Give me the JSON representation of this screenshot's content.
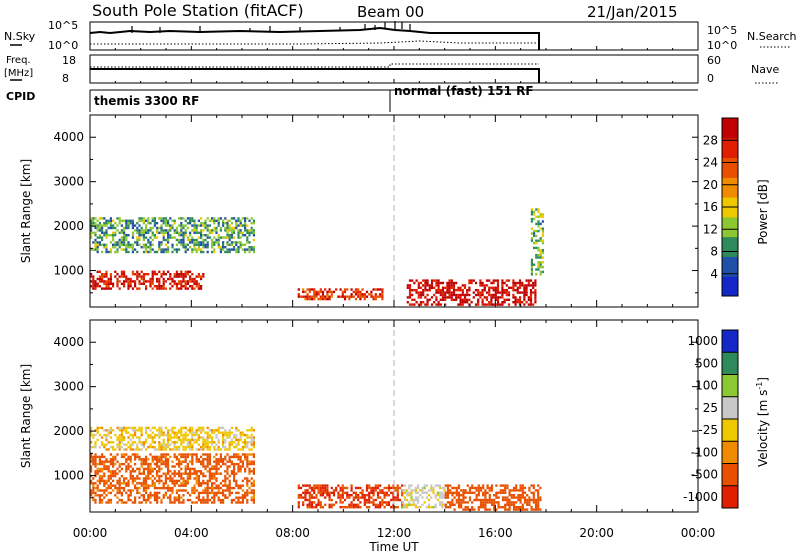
{
  "header": {
    "title": "South Pole Station (fitACF)",
    "beam": "Beam 00",
    "date": "21/Jan/2015"
  },
  "nsky_panel": {
    "left_label": "N.Sky",
    "left_ticks": [
      "10^5",
      "10^0"
    ],
    "right_ticks": [
      "10^5",
      "10^0"
    ],
    "right_label": "N.Search"
  },
  "freq_panel": {
    "left_label_1": "Freq.",
    "left_label_2": "[MHz]",
    "left_ticks": [
      "18",
      "8"
    ],
    "right_ticks": [
      "60",
      "0"
    ],
    "right_label": "Nave"
  },
  "cpid_panel": {
    "label": "CPID",
    "mode_1": "themis 3300 RF",
    "mode_2": "normal (fast) 151 RF"
  },
  "colors": {
    "power_scale": [
      "#1428c8",
      "#2050a8",
      "#2e8a5a",
      "#8cc832",
      "#f0c800",
      "#f08a00",
      "#e85000",
      "#e01e00",
      "#c00000"
    ],
    "velocity_scale": [
      "#1428c8",
      "#2e8a5a",
      "#8cc832",
      "#c8c8c8",
      "#f0c800",
      "#f08a00",
      "#e85000",
      "#e01e00"
    ]
  },
  "chart_data": [
    {
      "type": "heatmap",
      "parameter": "Power",
      "ylabel": "Slant Range [km]",
      "yticks": [
        1000,
        2000,
        3000,
        4000
      ],
      "ylim": [
        180,
        4500
      ],
      "xlim_hours": [
        0,
        24
      ],
      "data_end_hour": 17.9,
      "colorbar": {
        "label": "Power [dB]",
        "ticks": [
          "4",
          "8",
          "12",
          "16",
          "20",
          "24",
          "28"
        ],
        "range": [
          0,
          32
        ]
      },
      "features": [
        {
          "t_start": 0.0,
          "t_end": 4.5,
          "range_start": 600,
          "range_end": 1000,
          "value": 28
        },
        {
          "t_start": 0.0,
          "t_end": 6.5,
          "range_start": 1400,
          "range_end": 2200,
          "value": 10
        },
        {
          "t_start": 8.2,
          "t_end": 11.5,
          "range_start": 350,
          "range_end": 600,
          "value": 26
        },
        {
          "t_start": 12.5,
          "t_end": 17.6,
          "range_start": 250,
          "range_end": 800,
          "value": 30
        },
        {
          "t_start": 17.4,
          "t_end": 17.9,
          "range_start": 900,
          "range_end": 2400,
          "value": 12
        }
      ]
    },
    {
      "type": "heatmap",
      "parameter": "Velocity",
      "ylabel": "Slant Range [km]",
      "yticks": [
        1000,
        2000,
        3000,
        4000
      ],
      "ylim": [
        180,
        4500
      ],
      "xlim_hours": [
        0,
        24
      ],
      "data_end_hour": 17.9,
      "xlabel": "Time UT",
      "xticks": [
        "00:00",
        "04:00",
        "08:00",
        "12:00",
        "16:00",
        "20:00",
        "00:00"
      ],
      "colorbar": {
        "label": "Velocity [m s",
        "label_sup": "-1",
        "label_end": "]",
        "ticks": [
          "1000",
          "500",
          "100",
          "25",
          "-25",
          "-100",
          "-500",
          "-1000"
        ]
      },
      "features": [
        {
          "t_start": 0.0,
          "t_end": 6.5,
          "range_start": 1600,
          "range_end": 2100,
          "value": 0
        },
        {
          "t_start": 0.0,
          "t_end": 6.5,
          "range_start": 400,
          "range_end": 1500,
          "value": -200
        },
        {
          "t_start": 8.2,
          "t_end": 12.3,
          "range_start": 300,
          "range_end": 800,
          "value": -500
        },
        {
          "t_start": 12.3,
          "t_end": 14.0,
          "range_start": 300,
          "range_end": 800,
          "value": 50
        },
        {
          "t_start": 14.0,
          "t_end": 17.8,
          "range_start": 250,
          "range_end": 800,
          "value": -300
        }
      ]
    }
  ]
}
